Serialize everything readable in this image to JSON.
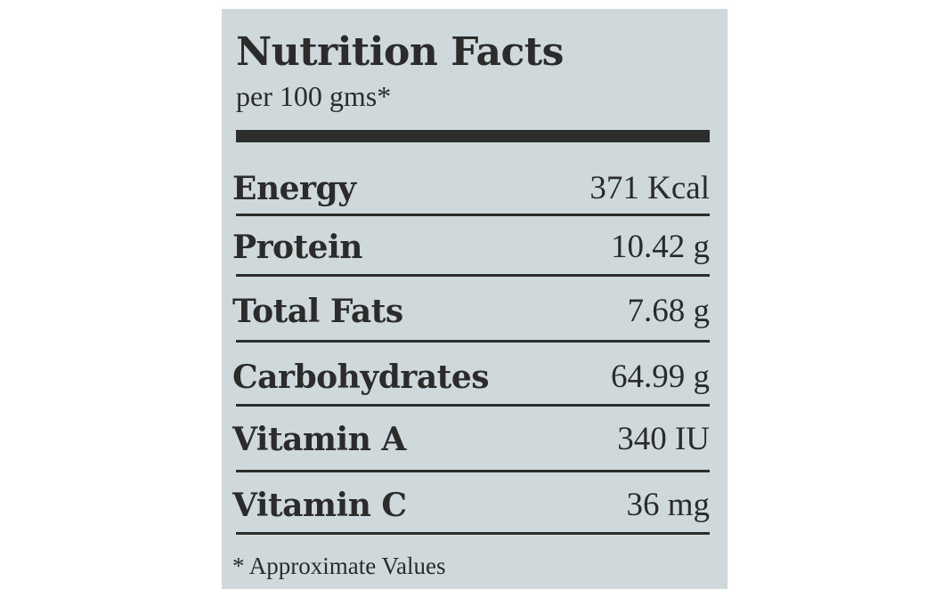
{
  "label": {
    "title": "Nutrition Facts",
    "subtitle": "per 100 gms*",
    "rows": [
      {
        "nutrient": "Energy",
        "amount": "371 Kcal"
      },
      {
        "nutrient": "Protein",
        "amount": "10.42 g"
      },
      {
        "nutrient": "Total Fats",
        "amount": "7.68 g"
      },
      {
        "nutrient": "Carbohydrates",
        "amount": "64.99 g"
      },
      {
        "nutrient": "Vitamin A",
        "amount": "340 IU"
      },
      {
        "nutrient": "Vitamin C",
        "amount": "36 mg"
      }
    ],
    "footnote": "* Approximate Values"
  },
  "colors": {
    "background": "#cfd9dc",
    "ink": "#2b2b2b"
  }
}
